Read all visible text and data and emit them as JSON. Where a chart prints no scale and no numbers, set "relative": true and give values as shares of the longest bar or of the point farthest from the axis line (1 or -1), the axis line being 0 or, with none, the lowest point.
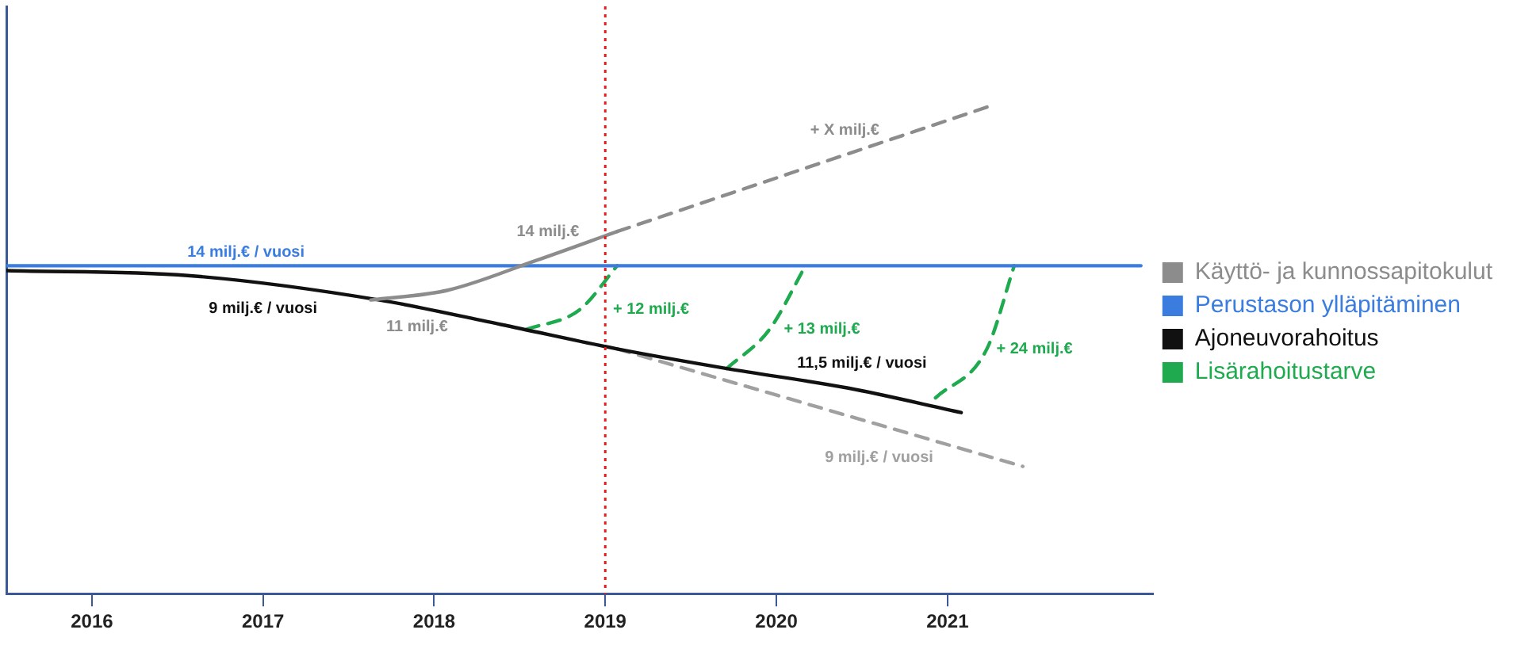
{
  "chart_data": {
    "type": "line",
    "relative": true,
    "legend": "right",
    "grid": false,
    "xlim": [
      2015.5,
      2022.2
    ],
    "xticks": [
      2016,
      2017,
      2018,
      2019,
      2020,
      2021
    ],
    "series": [
      {
        "name": "Käyttö- ja kunnossapitokulut",
        "color": "#8c8c8c",
        "line_style": "solid",
        "x": [
          2017.63,
          2018.08,
          2018.59,
          2019.07
        ],
        "values": [
          0.6,
          0.62,
          0.68,
          0.74
        ]
      },
      {
        "color": "#8c8c8c",
        "line_style": "dashed",
        "x": [
          2019.07,
          2021.28
        ],
        "values": [
          0.74,
          1.0
        ]
      },
      {
        "name": "Perustason ylläpitäminen",
        "color": "#3a7dde",
        "line_style": "solid",
        "x": [
          2015.5,
          2022.13
        ],
        "values": [
          0.67,
          0.67
        ]
      },
      {
        "name": "Ajoneuvorahoitus",
        "color": "#111111",
        "line_style": "solid",
        "x": [
          2015.5,
          2016.56,
          2017.68,
          2018.39,
          2019.07,
          2019.71,
          2020.42,
          2021.08
        ],
        "values": [
          0.66,
          0.65,
          0.6,
          0.55,
          0.5,
          0.46,
          0.42,
          0.37
        ]
      },
      {
        "color": "#a0a0a0",
        "line_style": "dashed",
        "x": [
          2019.07,
          2021.44
        ],
        "values": [
          0.5,
          0.26
        ]
      },
      {
        "name": "Lisärahoitustarve",
        "color": "#1faa4f",
        "line_style": "dashed",
        "x": [
          2018.54,
          2018.85,
          2019.07
        ],
        "values": [
          0.54,
          0.58,
          0.67
        ]
      },
      {
        "color": "#1faa4f",
        "line_style": "dashed",
        "x": [
          2019.71,
          2019.96,
          2020.17
        ],
        "values": [
          0.46,
          0.54,
          0.67
        ]
      },
      {
        "color": "#1faa4f",
        "line_style": "dashed",
        "x": [
          2020.93,
          2021.23,
          2021.39
        ],
        "values": [
          0.4,
          0.5,
          0.67
        ]
      }
    ],
    "ref_lines": [
      {
        "axis": "x",
        "value": 2019,
        "color": "#e02020",
        "line_style": "dotted"
      }
    ],
    "annotations": [
      {
        "text": "14 milj.€ / vuosi",
        "x": 2016.9,
        "y": 0.67
      },
      {
        "text": "9 milj.€ / vuosi",
        "x": 2017.0,
        "y": 0.63
      },
      {
        "text": "11 milj.€",
        "x": 2017.9,
        "y": 0.612
      },
      {
        "text": "14 milj.€",
        "x": 2019.07,
        "y": 0.74
      },
      {
        "text": "+ X milj.€",
        "x": 2020.4,
        "y": 0.9
      },
      {
        "text": "+ 12 milj.€",
        "x": 2018.85,
        "y": 0.58
      },
      {
        "text": "+ 13 milj.€",
        "x": 2019.96,
        "y": 0.54
      },
      {
        "text": "+ 24 milj.€",
        "x": 2021.23,
        "y": 0.5
      },
      {
        "text": "11,5 milj.€ / vuosi",
        "x": 2020.5,
        "y": 0.414
      },
      {
        "text": "9 milj.€ / vuosi",
        "x": 2020.6,
        "y": 0.345
      }
    ]
  }
}
